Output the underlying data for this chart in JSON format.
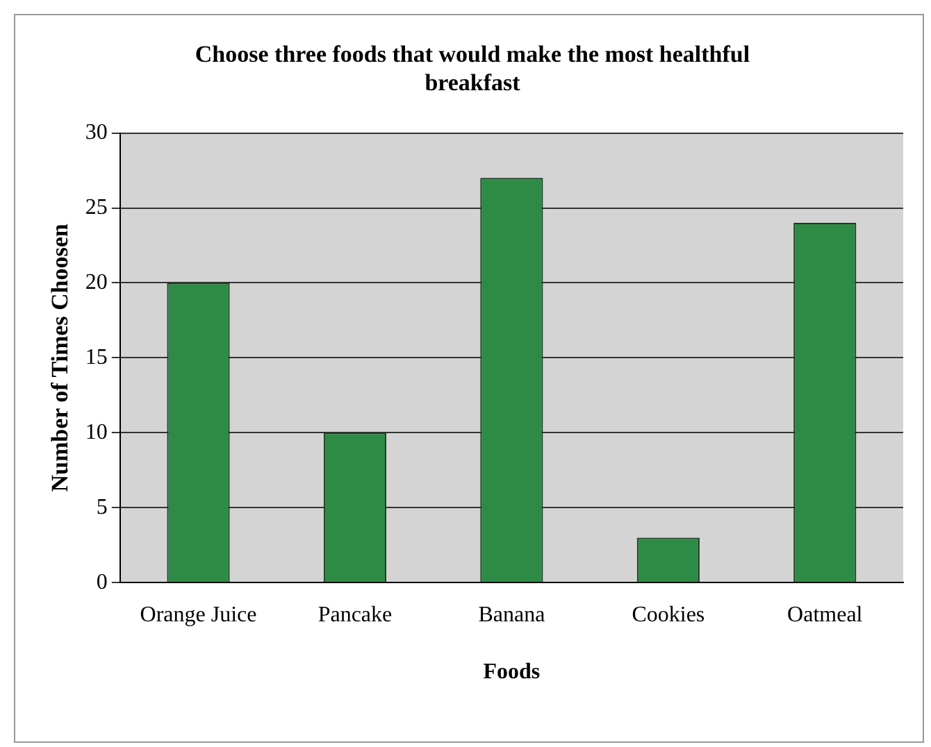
{
  "chart_data": {
    "type": "bar",
    "title": [
      "Choose three foods that would make the most healthful",
      "breakfast"
    ],
    "xlabel": "Foods",
    "ylabel": "Number of Times Choosen",
    "categories": [
      "Orange Juice",
      "Pancake",
      "Banana",
      "Cookies",
      "Oatmeal"
    ],
    "values": [
      20,
      10,
      27,
      3,
      24
    ],
    "color": "#2e8b45",
    "ylim": [
      0,
      30
    ],
    "yticks": [
      0,
      5,
      10,
      15,
      20,
      25,
      30
    ],
    "grid": "y",
    "legend": false
  }
}
